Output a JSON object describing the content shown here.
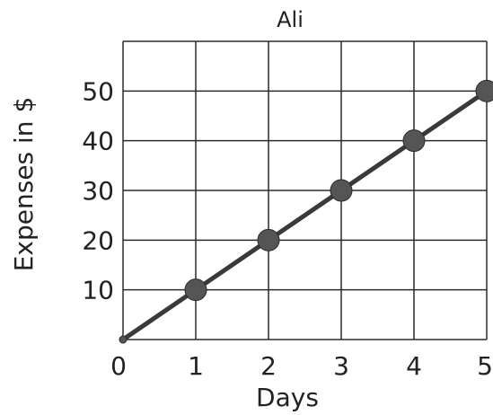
{
  "chart_data": {
    "type": "line",
    "title": "Ali",
    "xlabel": "Days",
    "ylabel": "Expenses in $",
    "x": [
      0,
      1,
      2,
      3,
      4,
      5
    ],
    "series": [
      {
        "values": [
          0,
          10,
          20,
          30,
          40,
          50
        ]
      }
    ],
    "xlim": [
      0,
      5
    ],
    "ylim": [
      0,
      60
    ],
    "x_ticks": [
      "0",
      "1",
      "2",
      "3",
      "4",
      "5"
    ],
    "y_ticks": [
      "10",
      "20",
      "30",
      "40",
      "50"
    ],
    "grid": true,
    "line_color": "#3a3a3a",
    "marker_color": "#555555"
  }
}
